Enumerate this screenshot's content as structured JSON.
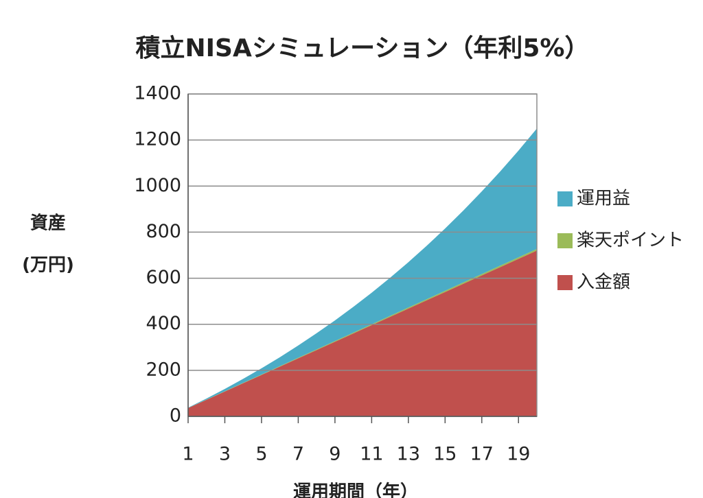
{
  "chart_data": {
    "type": "stacked-area",
    "title": "積立NISAシミュレーション（年利5%）",
    "y_label": [
      "資産",
      "(万円)"
    ],
    "x_label": "運用期間（年）",
    "x": [
      1,
      2,
      3,
      4,
      5,
      6,
      7,
      8,
      9,
      10,
      11,
      12,
      13,
      14,
      15,
      16,
      17,
      18,
      19,
      20
    ],
    "xlim": [
      1,
      20
    ],
    "xticks": [
      1,
      3,
      5,
      7,
      9,
      11,
      13,
      15,
      17,
      19
    ],
    "ylim": [
      0,
      1400
    ],
    "yticks": [
      0,
      200,
      400,
      600,
      800,
      1000,
      1200,
      1400
    ],
    "grid": true,
    "legend": "right",
    "series": [
      {
        "name": "入金額",
        "color": "#c0504d",
        "values": [
          36,
          72,
          108,
          144,
          180,
          216,
          252,
          288,
          324,
          360,
          396,
          432,
          468,
          504,
          540,
          576,
          612,
          648,
          684,
          720
        ]
      },
      {
        "name": "楽天ポイント",
        "color": "#9bbb59",
        "values": [
          0.4,
          0.7,
          1.1,
          1.4,
          1.8,
          2.2,
          2.5,
          2.9,
          3.2,
          3.6,
          4.0,
          4.3,
          4.7,
          5.0,
          5.4,
          5.8,
          6.1,
          6.5,
          6.8,
          7.2
        ]
      },
      {
        "name": "運用益",
        "color": "#4bacc6",
        "values": [
          1.4,
          4.8,
          10.0,
          17.5,
          27.1,
          38.9,
          53.3,
          70.1,
          89.6,
          111.8,
          137.0,
          165.4,
          196.9,
          231.8,
          270.3,
          312.5,
          358.9,
          408.9,
          463.6,
          522.7
        ]
      }
    ]
  }
}
